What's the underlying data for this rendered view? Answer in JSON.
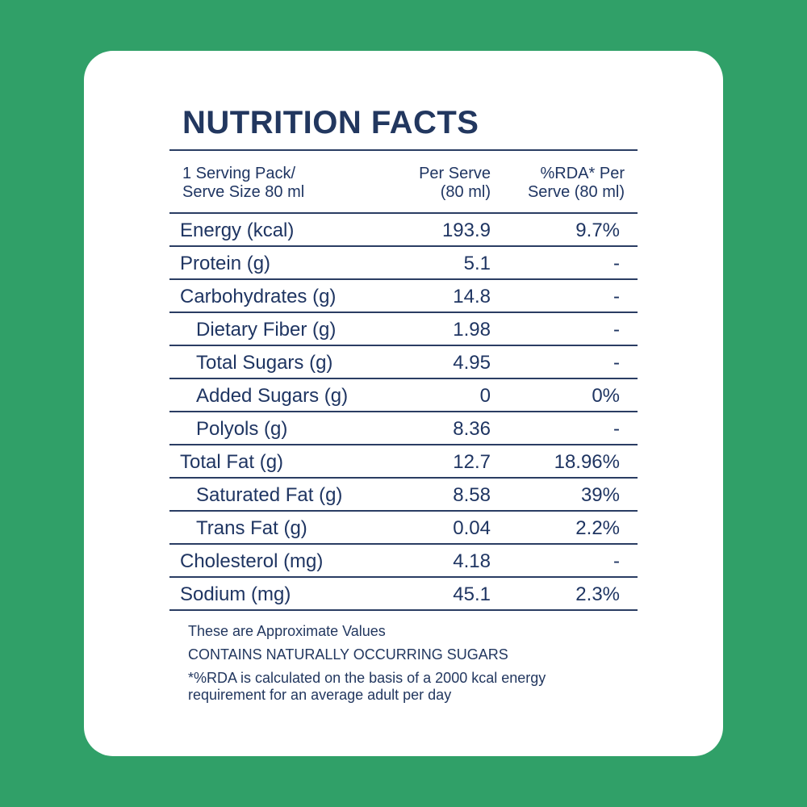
{
  "title": "NUTRITION FACTS",
  "header": {
    "col1": "1 Serving Pack/\nServe Size 80 ml",
    "col2": "Per Serve\n(80 ml)",
    "col3": "%RDA* Per\nServe (80 ml)"
  },
  "rows": [
    {
      "label": "Energy (kcal)",
      "value": "193.9",
      "rda": "9.7%",
      "indent": false
    },
    {
      "label": "Protein (g)",
      "value": "5.1",
      "rda": "-",
      "indent": false
    },
    {
      "label": "Carbohydrates (g)",
      "value": "14.8",
      "rda": "-",
      "indent": false
    },
    {
      "label": "Dietary Fiber (g)",
      "value": "1.98",
      "rda": "-",
      "indent": true
    },
    {
      "label": "Total Sugars (g)",
      "value": "4.95",
      "rda": "-",
      "indent": true
    },
    {
      "label": "Added Sugars (g)",
      "value": "0",
      "rda": "0%",
      "indent": true
    },
    {
      "label": "Polyols (g)",
      "value": "8.36",
      "rda": "-",
      "indent": true
    },
    {
      "label": "Total Fat (g)",
      "value": "12.7",
      "rda": "18.96%",
      "indent": false
    },
    {
      "label": "Saturated Fat (g)",
      "value": "8.58",
      "rda": "39%",
      "indent": true
    },
    {
      "label": "Trans Fat (g)",
      "value": "0.04",
      "rda": "2.2%",
      "indent": true
    },
    {
      "label": "Cholesterol (mg)",
      "value": "4.18",
      "rda": "-",
      "indent": false
    },
    {
      "label": "Sodium (mg)",
      "value": "45.1",
      "rda": "2.3%",
      "indent": false
    }
  ],
  "notes": {
    "approx": "These are Approximate Values",
    "sugars": "CONTAINS NATURALLY OCCURRING SUGARS",
    "rda_note_line1": "*%RDA is calculated on the basis of a 2000 kcal energy",
    "rda_note_line2": "requirement for an average adult per day"
  },
  "colors": {
    "background": "#30a068",
    "card": "#ffffff",
    "text": "#1f3562"
  }
}
